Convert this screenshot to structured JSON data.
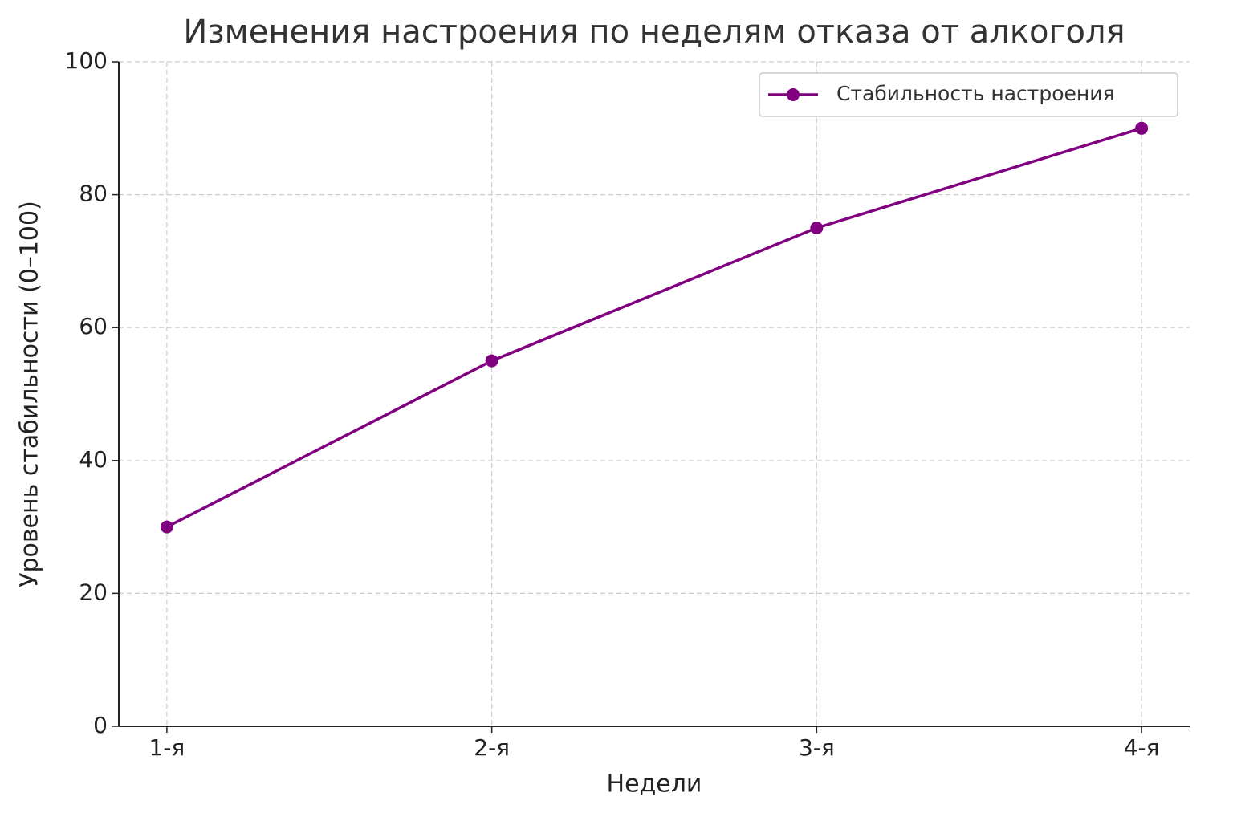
{
  "chart_data": {
    "type": "line",
    "title": "Изменения настроения по неделям отказа от алкоголя",
    "x_label": "Недели",
    "y_label": "Уровень стабильности (0–100)",
    "categories": [
      "1-я",
      "2-я",
      "3-я",
      "4-я"
    ],
    "series": [
      {
        "name": "Стабильность настроения",
        "color": "#800080",
        "values": [
          30,
          55,
          75,
          90
        ]
      }
    ],
    "ylim": [
      0,
      100
    ],
    "yticks": [
      0,
      20,
      40,
      60,
      80,
      100
    ],
    "grid": true,
    "legend": "upper right"
  }
}
